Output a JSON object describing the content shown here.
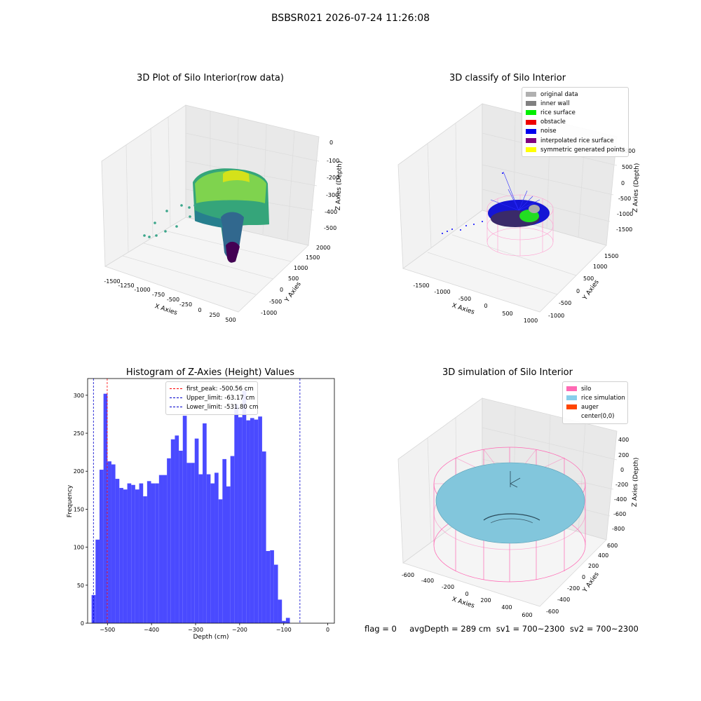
{
  "figure": {
    "suptitle": "BSBSR021 2026-07-24 11:26:08",
    "footer": "flag = 0     avgDepth = 289 cm  sv1 = 700~2300  sv2 = 700~2300"
  },
  "panels": {
    "raw": {
      "title": "3D Plot of Silo Interior(row data)",
      "xlabel": "X Axies",
      "ylabel": "Y Axies",
      "zlabel": "Z Axies (Depth)",
      "xticks": [
        "-1500",
        "-1250",
        "-1000",
        "-750",
        "-500",
        "-250",
        "0",
        "250",
        "500"
      ],
      "yticks": [
        "-1000",
        "-500",
        "0",
        "500",
        "1000",
        "1500",
        "2000"
      ],
      "zticks": [
        "0",
        "-100",
        "-200",
        "-300",
        "-400",
        "-500"
      ]
    },
    "classify": {
      "title": "3D classify of Silo Interior",
      "xlabel": "X Axies",
      "ylabel": "Y Axies",
      "zlabel": "Z Axies (Depth)",
      "xticks": [
        "-1500",
        "-1000",
        "-500",
        "0",
        "500",
        "1000"
      ],
      "yticks": [
        "-1000",
        "-500",
        "0",
        "500",
        "1000",
        "1500"
      ],
      "zticks": [
        "1000",
        "500",
        "0",
        "-500",
        "-1000",
        "-1500"
      ],
      "legend": [
        {
          "label": "original data",
          "color": "#b0b0b0"
        },
        {
          "label": "inner wall",
          "color": "#808080"
        },
        {
          "label": "rice surface",
          "color": "#00ee00"
        },
        {
          "label": "obstacle",
          "color": "#ee0000"
        },
        {
          "label": "noise",
          "color": "#0000ee"
        },
        {
          "label": "interpolated rice surface",
          "color": "#800080"
        },
        {
          "label": "symmetric generated points",
          "color": "#ffff00"
        }
      ]
    },
    "simulation": {
      "title": "3D simulation of Silo Interior",
      "xlabel": "X Axies",
      "ylabel": "Y Axies",
      "zlabel": "Z Axies (Depth)",
      "xticks": [
        "-600",
        "-400",
        "-200",
        "0",
        "200",
        "400",
        "600"
      ],
      "yticks": [
        "-600",
        "-400",
        "-200",
        "0",
        "200",
        "400",
        "600"
      ],
      "zticks": [
        "400",
        "200",
        "0",
        "-200",
        "-400",
        "-600",
        "-800"
      ],
      "legend": [
        {
          "label": "silo",
          "color": "#ff69b4"
        },
        {
          "label": "rice simulation",
          "color": "#87ceeb"
        },
        {
          "label": "auger",
          "color": "#ff4500"
        },
        {
          "label": "center(0,0)",
          "color": "#ffffff"
        }
      ]
    }
  },
  "chart_data": {
    "type": "bar",
    "title": "Histogram of Z-Axies (Height) Values",
    "xlabel": "Depth (cm)",
    "ylabel": "Frequency",
    "xlim": [
      -545,
      15
    ],
    "ylim": [
      0,
      322
    ],
    "xticks": [
      -500,
      -400,
      -300,
      -200,
      -100,
      0
    ],
    "yticks": [
      0,
      50,
      100,
      150,
      200,
      250,
      300
    ],
    "bar_color": "#4a4aff",
    "bin_start": -536,
    "bin_width": 9.0,
    "values": [
      37,
      110,
      202,
      302,
      213,
      209,
      190,
      178,
      176,
      184,
      182,
      176,
      184,
      167,
      187,
      184,
      184,
      195,
      195,
      217,
      242,
      247,
      227,
      273,
      211,
      211,
      243,
      196,
      263,
      196,
      184,
      198,
      163,
      216,
      180,
      220,
      288,
      271,
      306,
      267,
      270,
      268,
      272,
      226,
      95,
      96,
      77,
      31,
      3,
      7
    ],
    "vlines": [
      {
        "label": "first_peak: -500.56 cm",
        "x": -500.56,
        "color": "#ff0000"
      },
      {
        "label": "Upper_limit: -63.17 cm",
        "x": -63.17,
        "color": "#0000cc"
      },
      {
        "label": "Lower_limit: -531.80 cm",
        "x": -531.8,
        "color": "#0000cc"
      }
    ]
  }
}
